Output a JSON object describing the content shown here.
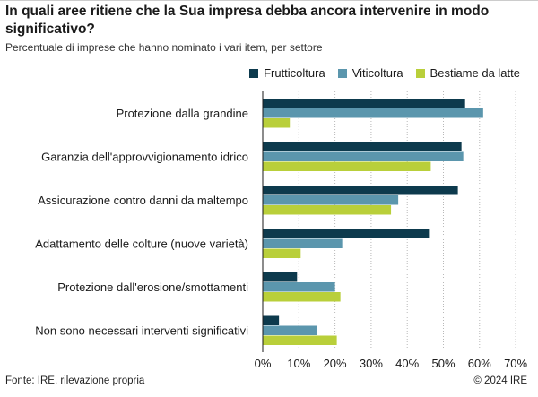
{
  "header": {
    "title": "In quali aree ritiene che la Sua impresa debba ancora intervenire in modo significativo?",
    "subtitle": "Percentuale di imprese che hanno nominato i vari item, per settore"
  },
  "footer": {
    "source": "Fonte: IRE, rilevazione propria",
    "copyright": "© 2024 IRE"
  },
  "chart_data": {
    "type": "bar",
    "orientation": "horizontal",
    "title": "In quali aree ritiene che la Sua impresa debba ancora intervenire in modo significativo?",
    "subtitle": "Percentuale di imprese che hanno nominato i vari item, per settore",
    "categories": [
      "Protezione dalla grandine",
      "Garanzia dell'approvvigionamento idrico",
      "Assicurazione contro danni da maltempo",
      "Adattamento delle colture (nuove varietà)",
      "Protezione dall'erosione/smottamenti",
      "Non sono necessari interventi significativi"
    ],
    "series": [
      {
        "name": "Frutticoltura",
        "color": "#0d3a4d",
        "values": [
          56,
          55,
          54,
          46,
          9.5,
          4.5
        ]
      },
      {
        "name": "Viticoltura",
        "color": "#5b96ad",
        "values": [
          61,
          55.5,
          37.5,
          22,
          20,
          15
        ]
      },
      {
        "name": "Bestiame da latte",
        "color": "#b9cf3a",
        "values": [
          7.5,
          46.5,
          35.5,
          10.5,
          21.5,
          20.5
        ]
      }
    ],
    "xlim": [
      0,
      70
    ],
    "xticks": [
      0,
      10,
      20,
      30,
      40,
      50,
      60,
      70
    ],
    "tick_labels": [
      "0%",
      "10%",
      "20%",
      "30%",
      "40%",
      "50%",
      "60%",
      "70%"
    ],
    "grid": true,
    "legend_position": "top-right"
  }
}
